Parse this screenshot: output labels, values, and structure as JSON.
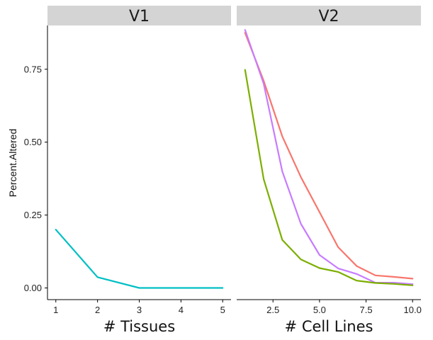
{
  "chart_data": {
    "type": "line",
    "ylabel": "Percent.Altered",
    "ylim": [
      -0.04,
      0.9
    ],
    "y_ticks": [
      0.0,
      0.25,
      0.5,
      0.75
    ],
    "y_tick_labels": [
      "0.00",
      "0.25",
      "0.50",
      "0.75"
    ],
    "panels": [
      {
        "strip": "V1",
        "xlabel": "# Tissues",
        "xlim": [
          0.8,
          5.2
        ],
        "x_ticks": [
          1,
          2,
          3,
          4,
          5
        ],
        "x_tick_labels": [
          "1",
          "2",
          "3",
          "4",
          "5"
        ],
        "series": [
          {
            "name": "teal",
            "color": "#00BFC4",
            "x": [
              1,
              2,
              3,
              4,
              5
            ],
            "values": [
              0.2,
              0.037,
              0.0,
              0.0,
              0.0
            ]
          }
        ]
      },
      {
        "strip": "V2",
        "xlabel": "# Cell Lines",
        "xlim": [
          0.55,
          10.45
        ],
        "x_ticks": [
          2.5,
          5.0,
          7.5,
          10.0
        ],
        "x_tick_labels": [
          "2.5",
          "5.0",
          "7.5",
          "10.0"
        ],
        "series": [
          {
            "name": "red",
            "color": "#F8766D",
            "x": [
              1,
              2,
              3,
              4,
              5,
              6,
              7,
              8,
              9,
              10
            ],
            "values": [
              0.875,
              0.71,
              0.52,
              0.38,
              0.26,
              0.14,
              0.075,
              0.043,
              0.038,
              0.032
            ]
          },
          {
            "name": "purple",
            "color": "#C77CFF",
            "x": [
              1,
              2,
              3,
              4,
              5,
              6,
              7,
              8,
              9,
              10
            ],
            "values": [
              0.885,
              0.7,
              0.4,
              0.22,
              0.113,
              0.067,
              0.048,
              0.018,
              0.018,
              0.013
            ]
          },
          {
            "name": "green",
            "color": "#7CAE00",
            "x": [
              1,
              2,
              3,
              4,
              5,
              6,
              7,
              8,
              9,
              10
            ],
            "values": [
              0.748,
              0.373,
              0.165,
              0.098,
              0.068,
              0.055,
              0.025,
              0.017,
              0.014,
              0.009
            ]
          }
        ]
      }
    ]
  }
}
